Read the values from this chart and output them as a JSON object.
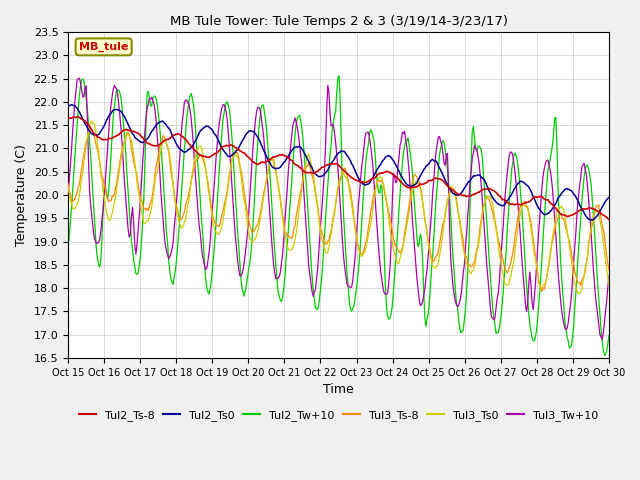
{
  "title": "MB Tule Tower: Tule Temps 2 & 3 (3/19/14-3/23/17)",
  "xlabel": "Time",
  "ylabel": "Temperature (C)",
  "ylim": [
    16.5,
    23.5
  ],
  "yticks": [
    16.5,
    17.0,
    17.5,
    18.0,
    18.5,
    19.0,
    19.5,
    20.0,
    20.5,
    21.0,
    21.5,
    22.0,
    22.5,
    23.0,
    23.5
  ],
  "xtick_labels": [
    "Oct 15",
    "Oct 16",
    "Oct 17",
    "Oct 18",
    "Oct 19",
    "Oct 20",
    "Oct 21",
    "Oct 22",
    "Oct 23",
    "Oct 24",
    "Oct 25",
    "Oct 26",
    "Oct 27",
    "Oct 28",
    "Oct 29",
    "Oct 30"
  ],
  "legend_entries": [
    "Tul2_Ts-8",
    "Tul2_Ts0",
    "Tul2_Tw+10",
    "Tul3_Ts-8",
    "Tul3_Ts0",
    "Tul3_Tw+10"
  ],
  "legend_colors": [
    "#cc0000",
    "#000099",
    "#00cc00",
    "#ff8800",
    "#cccc00",
    "#aa00aa"
  ],
  "inset_label": "MB_tule",
  "inset_facecolor": "#ffffcc",
  "inset_edgecolor": "#888800",
  "inset_textcolor": "#cc0000",
  "background_color": "#f0f0f0",
  "plot_bg_color": "#ffffff",
  "grid_color": "#cccccc"
}
